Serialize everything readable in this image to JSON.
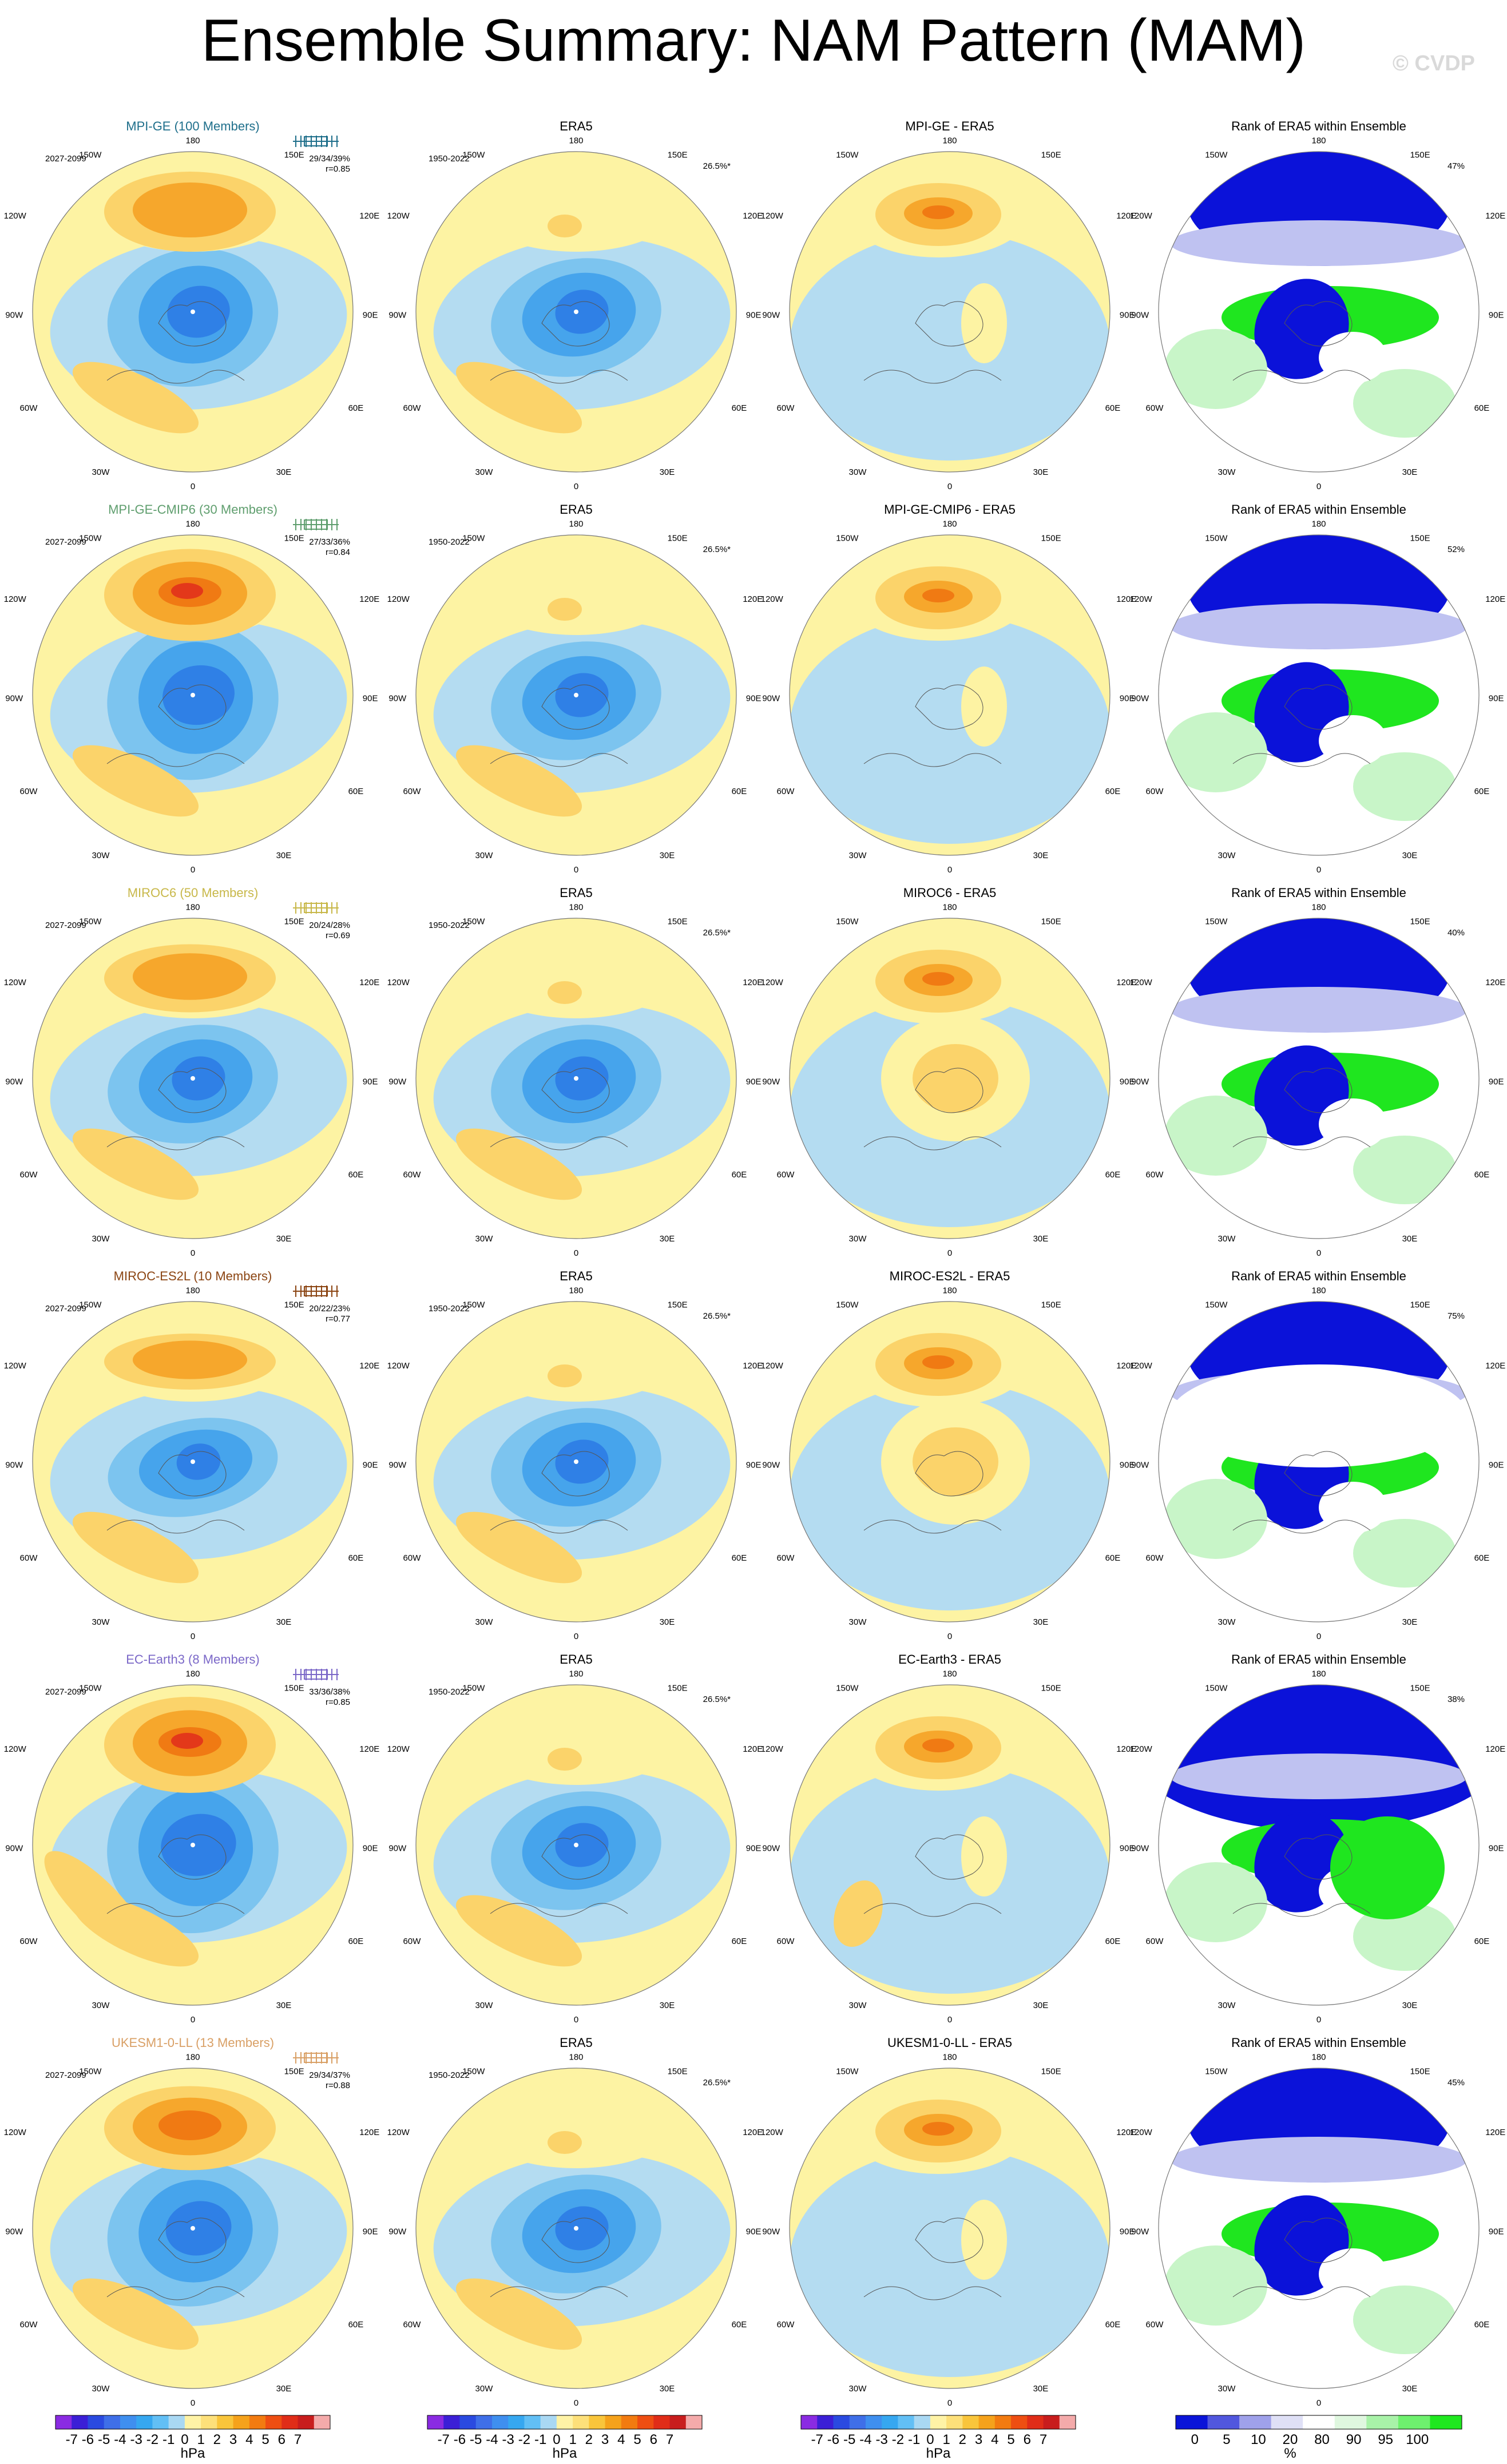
{
  "title": "Ensemble Summary: NAM Pattern (MAM)",
  "watermark": "© CVDP",
  "panel_labels": {
    "era5_title": "ERA5",
    "rank_title": "Rank of ERA5 within Ensemble",
    "model_period": "2027-2099",
    "obs_period": "1950-2022",
    "obs_pct": "26.5%*",
    "lon_labels": [
      "180",
      "150E",
      "120E",
      "90E",
      "60E",
      "30E",
      "0",
      "30W",
      "60W",
      "90W",
      "120W",
      "150W"
    ]
  },
  "rows": [
    {
      "model": "MPI-GE",
      "members_label": "MPI-GE (100 Members)",
      "color": "#1f6f8b",
      "pcts": "29/34/39%",
      "r": "r=0.85",
      "diff_title": "MPI-GE - ERA5",
      "rank_pct": "47%"
    },
    {
      "model": "MPI-GE-CMIP6",
      "members_label": "MPI-GE-CMIP6 (30 Members)",
      "color": "#5f9e6e",
      "pcts": "27/33/36%",
      "r": "r=0.84",
      "diff_title": "MPI-GE-CMIP6 - ERA5",
      "rank_pct": "52%"
    },
    {
      "model": "MIROC6",
      "members_label": "MIROC6 (50 Members)",
      "color": "#c8b84a",
      "pcts": "20/24/28%",
      "r": "r=0.69",
      "diff_title": "MIROC6 - ERA5",
      "rank_pct": "40%"
    },
    {
      "model": "MIROC-ES2L",
      "members_label": "MIROC-ES2L (10 Members)",
      "color": "#8b4513",
      "pcts": "20/22/23%",
      "r": "r=0.77",
      "diff_title": "MIROC-ES2L - ERA5",
      "rank_pct": "75%"
    },
    {
      "model": "EC-Earth3",
      "members_label": "EC-Earth3 (8 Members)",
      "color": "#7b68c8",
      "pcts": "33/36/38%",
      "r": "r=0.85",
      "diff_title": "EC-Earth3 - ERA5",
      "rank_pct": "38%"
    },
    {
      "model": "UKESM1-0-LL",
      "members_label": "UKESM1-0-LL (13 Members)",
      "color": "#d9a066",
      "pcts": "29/34/37%",
      "r": "r=0.88",
      "diff_title": "UKESM1-0-LL - ERA5",
      "rank_pct": "45%"
    }
  ],
  "colorbars": {
    "hpa_labels": [
      "-7",
      "-6",
      "-5",
      "-4",
      "-3",
      "-2",
      "-1",
      "0",
      "1",
      "2",
      "3",
      "4",
      "5",
      "6",
      "7"
    ],
    "hpa_unit": "hPa",
    "hpa_colors": [
      "#8a2be2",
      "#3b1fd6",
      "#2a4ae0",
      "#3f6fe8",
      "#3f8fef",
      "#36a7f0",
      "#62bff5",
      "#a9d8f3",
      "#fff3a6",
      "#fde07a",
      "#f9c53b",
      "#f5a21b",
      "#f27b10",
      "#ee4e12",
      "#e02d18",
      "#c81d1d",
      "#f4aaaa"
    ],
    "rank_labels": [
      "0",
      "5",
      "10",
      "20",
      "80",
      "90",
      "95",
      "100"
    ],
    "rank_unit": "%",
    "rank_colors": [
      "#0a14d8",
      "#5157de",
      "#9fa1ea",
      "#dfe0f6",
      "#ffffff",
      "#dff7df",
      "#a8f2a8",
      "#6ef06e",
      "#1fe81f"
    ]
  },
  "field_colors": {
    "blue_light": "#b4dcf1",
    "blue_mid": "#7cc4ef",
    "blue_deep": "#46a4ec",
    "blue_core": "#2f80e6",
    "yellow": "#fdf3a3",
    "orange_light": "#fbd36a",
    "orange": "#f6a72c",
    "orange_deep": "#f07a13",
    "red": "#e3381a",
    "rank_blue": "#0b12d9",
    "rank_blue_light": "#bfc2f1",
    "rank_green": "#1fe61f",
    "rank_green_light": "#c8f5c8"
  }
}
